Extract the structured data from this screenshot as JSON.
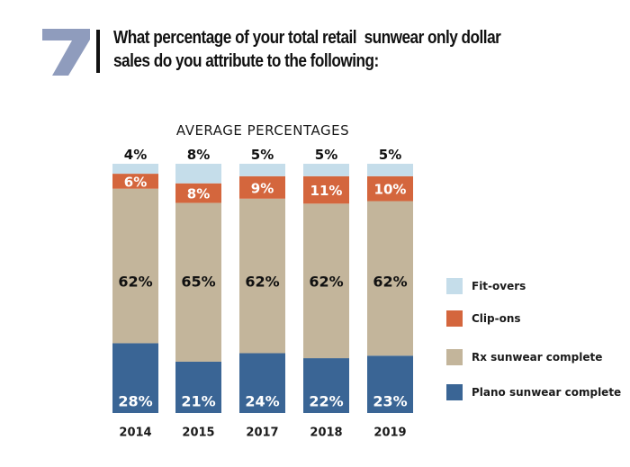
{
  "header": {
    "number": "7",
    "title_line_1": "What percentage of your total retail  sunwear only dollar",
    "title_line_2": "sales do you attribute to the following:"
  },
  "colors": {
    "number_badge": "#8F9CBD",
    "fit_overs": "#C5DDEA",
    "clip_ons": "#D4663D",
    "rx": "#C3B59B",
    "plano": "#3A6595",
    "label_dark": "#111111",
    "label_light": "#ffffff"
  },
  "chart_data": {
    "type": "bar",
    "stacked": true,
    "title": "AVERAGE PERCENTAGES",
    "xlabel": "",
    "ylabel": "",
    "categories": [
      "2014",
      "2015",
      "2017",
      "2018",
      "2019"
    ],
    "series": [
      {
        "name": "Plano sunwear complete",
        "key": "plano",
        "values": [
          28,
          21,
          24,
          22,
          23
        ],
        "labels": [
          "28%",
          "21%",
          "24%",
          "22%",
          "23%"
        ]
      },
      {
        "name": "Rx sunwear complete",
        "key": "rx",
        "values": [
          62,
          65,
          62,
          62,
          62
        ],
        "labels": [
          "62%",
          "65%",
          "62%",
          "62%",
          "62%"
        ]
      },
      {
        "name": "Clip-ons",
        "key": "clip_ons",
        "values": [
          6,
          8,
          9,
          11,
          10
        ],
        "labels": [
          "6%",
          "8%",
          "9%",
          "11%",
          "10%"
        ]
      },
      {
        "name": "Fit-overs",
        "key": "fit_overs",
        "values": [
          4,
          8,
          5,
          5,
          5
        ],
        "labels": [
          "4%",
          "8%",
          "5%",
          "5%",
          "5%"
        ]
      }
    ],
    "legend": {
      "position": "right",
      "order": [
        "Fit-overs",
        "Clip-ons",
        "Rx sunwear complete",
        "Plano sunwear complete"
      ]
    },
    "ylim": [
      0,
      100
    ],
    "grid": false
  }
}
